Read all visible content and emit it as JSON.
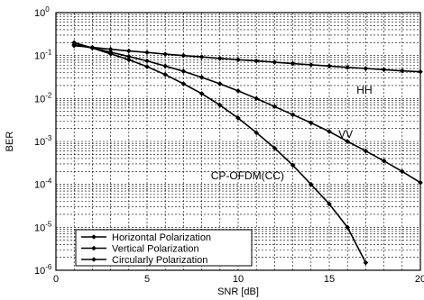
{
  "chart_data": {
    "type": "line",
    "title": "",
    "xlabel": "SNR [dB]",
    "ylabel": "BER",
    "xlim": [
      0,
      20
    ],
    "ylim": [
      1e-06,
      1
    ],
    "yscale": "log",
    "grid": true,
    "xticks": [
      "0",
      "5",
      "10",
      "15",
      "20"
    ],
    "yticks": [
      {
        "value": 1,
        "base": "10",
        "exp": "0"
      },
      {
        "value": 0.1,
        "base": "10",
        "exp": "-1"
      },
      {
        "value": 0.01,
        "base": "10",
        "exp": "-2"
      },
      {
        "value": 0.001,
        "base": "10",
        "exp": "-3"
      },
      {
        "value": 0.0001,
        "base": "10",
        "exp": "-4"
      },
      {
        "value": 1e-05,
        "base": "10",
        "exp": "-5"
      },
      {
        "value": 1e-06,
        "base": "10",
        "exp": "-6"
      }
    ],
    "legend_position": "bottom-left",
    "series": [
      {
        "name": "Horizontal Polarization",
        "x": [
          1,
          2,
          3,
          4,
          5,
          6,
          7,
          8,
          9,
          10,
          11,
          12,
          13,
          14,
          15,
          16,
          17,
          18,
          19,
          20
        ],
        "y": [
          0.17,
          0.155,
          0.14,
          0.128,
          0.118,
          0.108,
          0.1,
          0.093,
          0.086,
          0.08,
          0.075,
          0.07,
          0.065,
          0.061,
          0.057,
          0.053,
          0.05,
          0.047,
          0.044,
          0.042
        ]
      },
      {
        "name": "Vertical Polarization",
        "x": [
          1,
          2,
          3,
          4,
          5,
          6,
          7,
          8,
          9,
          10,
          11,
          12,
          13,
          14,
          15,
          16,
          17,
          18,
          19,
          20
        ],
        "y": [
          0.18,
          0.15,
          0.12,
          0.095,
          0.075,
          0.057,
          0.043,
          0.031,
          0.022,
          0.015,
          0.01,
          0.0065,
          0.0042,
          0.0027,
          0.0017,
          0.001,
          0.0006,
          0.00035,
          0.0002,
          0.00011
        ]
      },
      {
        "name": "Circularly Polarization",
        "x": [
          1,
          2,
          3,
          4,
          5,
          6,
          7,
          8,
          9,
          10,
          11,
          12,
          13,
          14,
          15,
          16,
          17
        ],
        "y": [
          0.2,
          0.15,
          0.11,
          0.08,
          0.055,
          0.036,
          0.022,
          0.013,
          0.007,
          0.0035,
          0.0016,
          0.0007,
          0.00028,
          0.0001,
          3.5e-05,
          1e-05,
          1.5e-06
        ]
      }
    ],
    "annotations": [
      {
        "text": "HH",
        "x": 16.5,
        "y": 0.013
      },
      {
        "text": "VV",
        "x": 15.5,
        "y": 0.0012
      },
      {
        "text": "CP-OFDM(CC)",
        "x": 8.5,
        "y": 0.00013
      }
    ]
  }
}
